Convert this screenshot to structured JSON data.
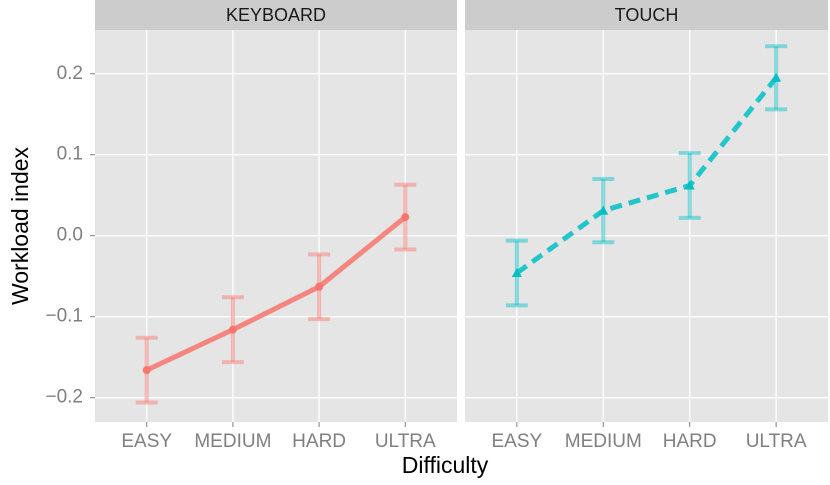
{
  "chart_data": [
    {
      "type": "line",
      "title": "KEYBOARD",
      "xlabel": "Difficulty",
      "ylabel": "Workload index",
      "categories": [
        "EASY",
        "MEDIUM",
        "HARD",
        "ULTRA"
      ],
      "series": [
        {
          "color": "#F8766D",
          "linestyle": "solid",
          "marker": "circle",
          "values": [
            -0.166,
            -0.116,
            -0.063,
            0.023
          ],
          "errors": [
            0.04,
            0.04,
            0.04,
            0.04
          ]
        }
      ],
      "ylim": [
        -0.23,
        0.254
      ],
      "yticks": [
        {
          "value": -0.2,
          "label": "−0.2"
        },
        {
          "value": -0.1,
          "label": "−0.1"
        },
        {
          "value": 0,
          "label": "0.0"
        },
        0.1,
        0.2
      ],
      "grid": true
    },
    {
      "type": "line",
      "title": "TOUCH",
      "categories": [
        "EASY",
        "MEDIUM",
        "HARD",
        "ULTRA"
      ],
      "series": [
        {
          "color": "#00BFC4",
          "linestyle": "dashed",
          "marker": "triangle",
          "values": [
            -0.046,
            0.031,
            0.062,
            0.195
          ],
          "errors": [
            0.04,
            0.039,
            0.04,
            0.039
          ]
        }
      ],
      "ylim": [
        -0.23,
        0.254
      ],
      "yticks": [
        -0.2,
        -0.1,
        0,
        0.1,
        0.2
      ],
      "grid": true
    }
  ]
}
